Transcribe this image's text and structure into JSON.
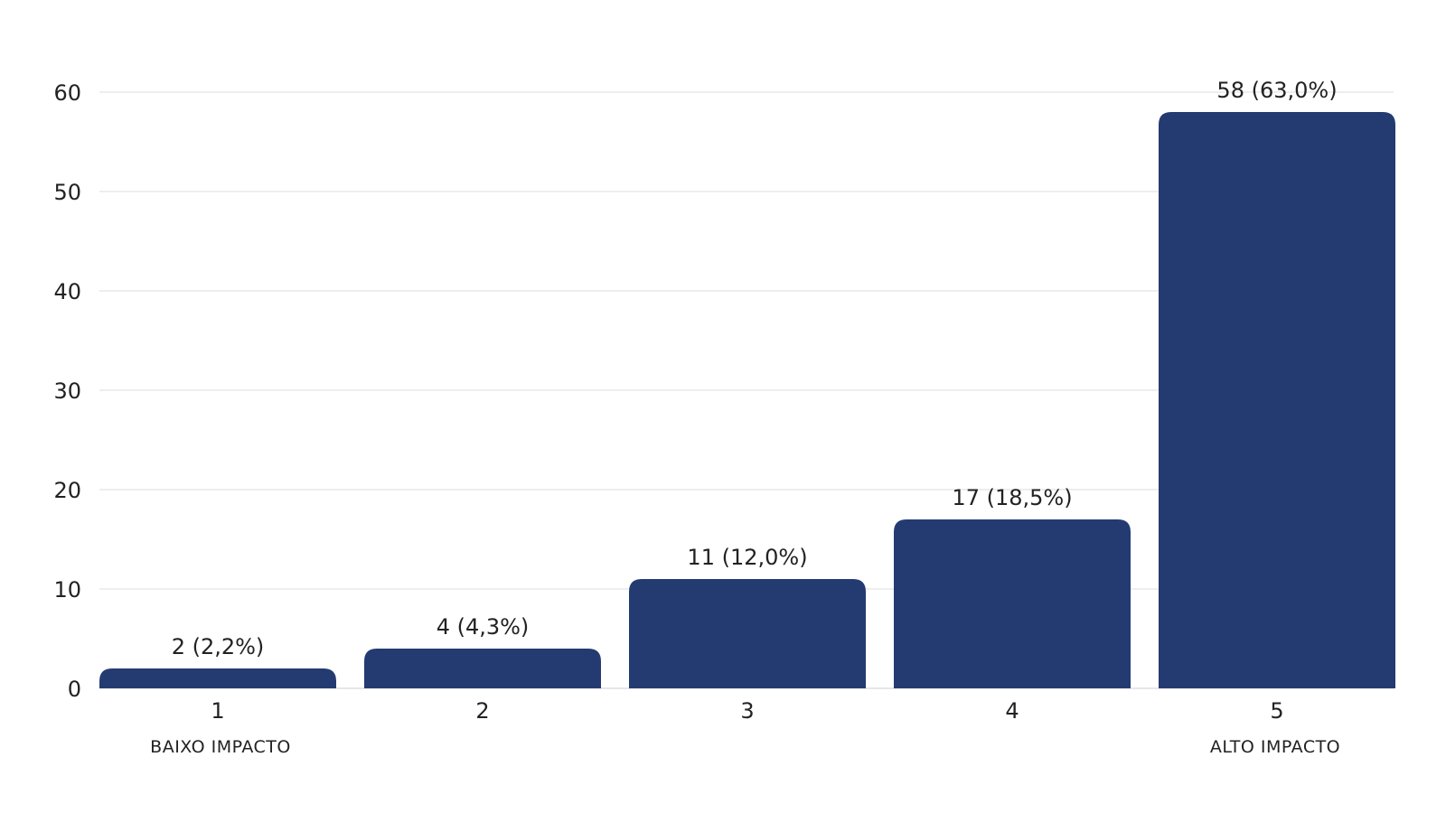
{
  "chart_data": {
    "type": "bar",
    "categories": [
      "1",
      "2",
      "3",
      "4",
      "5"
    ],
    "values": [
      2,
      4,
      11,
      17,
      58
    ],
    "data_labels": [
      "2 (2,2%)",
      "4 (4,3%)",
      "11 (12,0%)",
      "17 (18,5%)",
      "58 (63,0%)"
    ],
    "title": "",
    "xlabel": "",
    "ylabel": "",
    "ylim": [
      0,
      60
    ],
    "yticks": [
      0,
      10,
      20,
      30,
      40,
      50,
      60
    ],
    "grid": true,
    "legend": "none",
    "annotations": {
      "low": "BAIXO IMPACTO",
      "high": "ALTO IMPACTO"
    },
    "colors": {
      "bar": "#243b72",
      "grid": "#dcdcdc",
      "text": "#222222"
    }
  }
}
